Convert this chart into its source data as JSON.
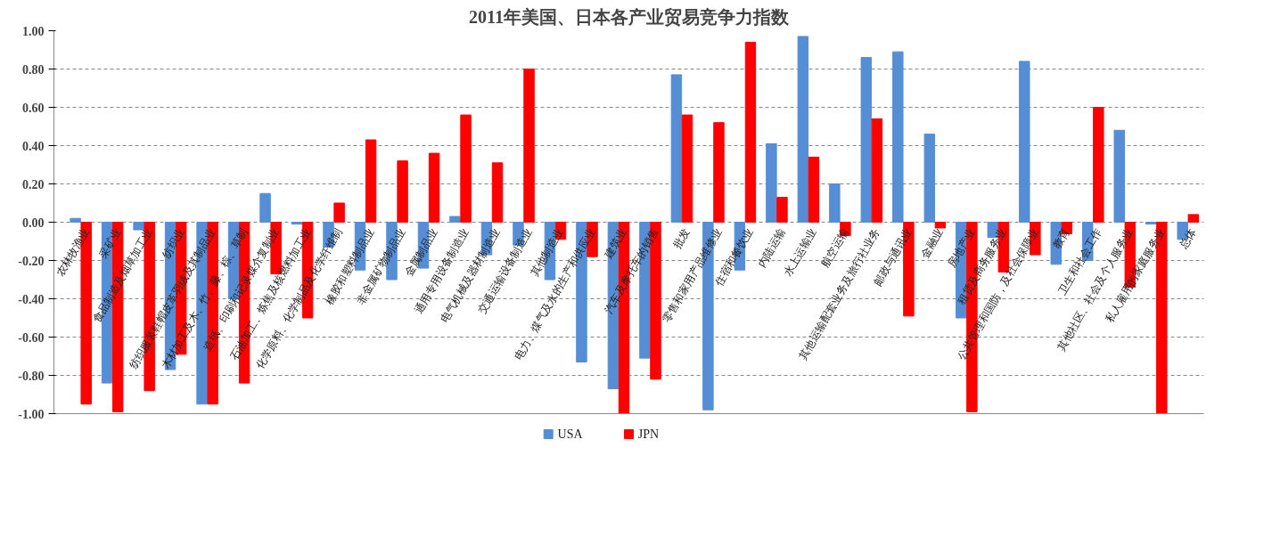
{
  "chart_data": {
    "type": "bar",
    "title": "2011年美国、日本各产业贸易竞争力指数",
    "categories": [
      "农林牧渔业",
      "采矿业",
      "食品制造及烟草加工业",
      "纺织业",
      "纺织服装鞋帽皮革羽绒及其制品业",
      "木材加工及木、竹、藤、棕、草制",
      "造纸、印刷和记录媒介复制业",
      "石油加工、炼焦及核燃料加工业",
      "化学原料、化学制品及化学纤维制",
      "橡胶和塑料制品业",
      "非金属矿物制品业",
      "金属制品业",
      "通用专用设备制造业",
      "电气机械及器材制造业",
      "交通运输设备制造业",
      "其他制造业",
      "电力、煤气及水的生产和供应业",
      "建筑业",
      "汽车及摩托车的销售",
      "批发",
      "零售和家用产品维修业",
      "住宿和餐饮业",
      "内陆运输",
      "水上运输业",
      "航空运输",
      "其他运输配套业务及旅行社业务",
      "邮政与通讯业",
      "金融业",
      "房地产业",
      "租赁及商务服务业",
      "公共管理和国防，及社会保障业",
      "教育",
      "卫生和社会工作",
      "其他社区、社会及个人服务业",
      "私人雇用的家庭服务业",
      "总体"
    ],
    "series": [
      {
        "name": "USA",
        "color": "#558ed5",
        "values": [
          0.02,
          -0.84,
          -0.04,
          -0.77,
          -0.95,
          -0.4,
          0.15,
          -0.01,
          -0.13,
          -0.25,
          -0.3,
          -0.24,
          0.03,
          -0.17,
          -0.12,
          -0.3,
          -0.73,
          -0.87,
          -0.71,
          0.77,
          -0.98,
          -0.25,
          0.41,
          0.97,
          0.2,
          0.86,
          0.89,
          0.46,
          -0.5,
          -0.08,
          0.84,
          -0.22,
          -0.2,
          0.48,
          -0.01,
          -0.09
        ]
      },
      {
        "name": "JPN",
        "color": "#ff0000",
        "values": [
          -0.95,
          -0.99,
          -0.88,
          -0.69,
          -0.95,
          -0.84,
          -0.27,
          -0.5,
          0.1,
          0.43,
          0.32,
          0.36,
          0.56,
          0.31,
          0.8,
          -0.09,
          -0.18,
          -1.0,
          -0.82,
          0.56,
          0.52,
          0.94,
          0.13,
          0.34,
          -0.07,
          0.54,
          -0.49,
          -0.03,
          -0.99,
          -0.26,
          -0.17,
          -0.06,
          0.6,
          -0.34,
          -1.0,
          0.04
        ]
      }
    ],
    "ylim": [
      -1.0,
      1.0
    ],
    "yticks": [
      {
        "value": -1.0,
        "label": "-1.00"
      },
      {
        "value": -0.8,
        "label": "-0.80"
      },
      {
        "value": -0.6,
        "label": "-0.60"
      },
      {
        "value": -0.4,
        "label": "-0.40"
      },
      {
        "value": -0.2,
        "label": "-0.20"
      },
      {
        "value": 0,
        "label": "0.00"
      },
      {
        "value": 0.2,
        "label": "0.20"
      },
      {
        "value": 0.4,
        "label": "0.40"
      },
      {
        "value": 0.6,
        "label": "0.60"
      },
      {
        "value": 0.8,
        "label": "0.80"
      },
      {
        "value": 1.0,
        "label": "1.00"
      }
    ],
    "grid": "y",
    "legend": "bottom"
  }
}
